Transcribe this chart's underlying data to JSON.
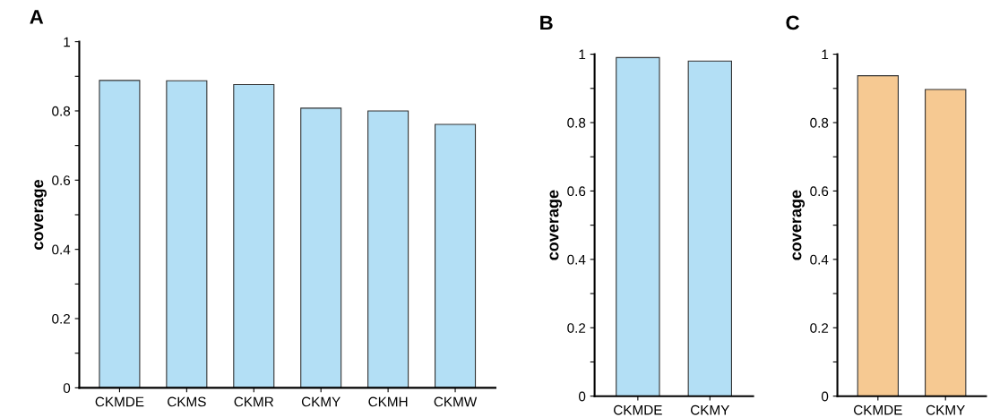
{
  "chart_data": [
    {
      "type": "bar",
      "title": "A",
      "ylabel": "coverage",
      "categories": [
        "CKMDE",
        "CKMS",
        "CKMR",
        "CKMY",
        "CKMH",
        "CKMW"
      ],
      "values": [
        0.888,
        0.887,
        0.876,
        0.808,
        0.8,
        0.761
      ],
      "color": "#b3dff5",
      "ylim": [
        0,
        1
      ],
      "yticks": [
        0,
        {
          "value": 0.1,
          "label": null
        },
        0.2,
        {
          "value": 0.3,
          "label": null
        },
        0.4,
        {
          "value": 0.5,
          "label": null
        },
        0.6,
        {
          "value": 0.7,
          "label": null
        },
        0.8,
        {
          "value": 0.9,
          "label": null
        },
        1
      ],
      "grid": false
    },
    {
      "type": "bar",
      "title": "B",
      "ylabel": "coverage",
      "categories": [
        "CKMDE",
        "CKMY"
      ],
      "values": [
        0.99,
        0.98
      ],
      "color": "#b3dff5",
      "ylim": [
        0,
        1
      ],
      "yticks": [
        0,
        {
          "value": 0.1,
          "label": null
        },
        0.2,
        {
          "value": 0.3,
          "label": null
        },
        0.4,
        {
          "value": 0.5,
          "label": null
        },
        0.6,
        {
          "value": 0.7,
          "label": null
        },
        0.8,
        {
          "value": 0.9,
          "label": null
        },
        1
      ],
      "grid": false
    },
    {
      "type": "bar",
      "title": "C",
      "ylabel": "coverage",
      "categories": [
        "CKMDE",
        "CKMY"
      ],
      "values": [
        0.937,
        0.897
      ],
      "color": "#f6c992",
      "ylim": [
        0,
        1
      ],
      "yticks": [
        0,
        {
          "value": 0.1,
          "label": null
        },
        0.2,
        {
          "value": 0.3,
          "label": null
        },
        0.4,
        {
          "value": 0.5,
          "label": null
        },
        0.6,
        {
          "value": 0.7,
          "label": null
        },
        0.8,
        {
          "value": 0.9,
          "label": null
        },
        1
      ],
      "grid": false
    }
  ]
}
